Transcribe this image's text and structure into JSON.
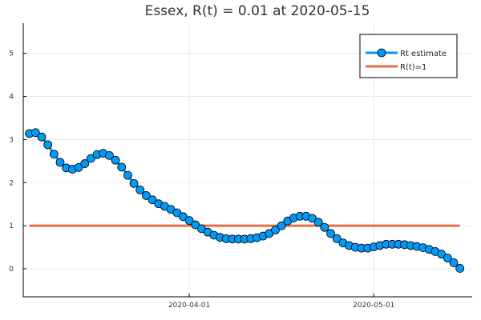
{
  "chart_data": {
    "type": "line",
    "title": "Essex, R(t) = 0.01 at 2020-05-15",
    "xlabel": "",
    "ylabel": "",
    "xlim": [
      "2020-03-05",
      "2020-05-17"
    ],
    "ylim": [
      -0.65,
      5.7
    ],
    "grid": true,
    "legend_position": "top-right",
    "x_ticks": [
      "2020-04-01",
      "2020-05-01"
    ],
    "y_ticks": [
      0,
      1,
      2,
      3,
      4,
      5
    ],
    "series": [
      {
        "name": "Rt estimate",
        "color": "#009af9",
        "marker": "circle",
        "x": [
          "2020-03-06",
          "2020-03-07",
          "2020-03-08",
          "2020-03-09",
          "2020-03-10",
          "2020-03-11",
          "2020-03-12",
          "2020-03-13",
          "2020-03-14",
          "2020-03-15",
          "2020-03-16",
          "2020-03-17",
          "2020-03-18",
          "2020-03-19",
          "2020-03-20",
          "2020-03-21",
          "2020-03-22",
          "2020-03-23",
          "2020-03-24",
          "2020-03-25",
          "2020-03-26",
          "2020-03-27",
          "2020-03-28",
          "2020-03-29",
          "2020-03-30",
          "2020-03-31",
          "2020-04-01",
          "2020-04-02",
          "2020-04-03",
          "2020-04-04",
          "2020-04-05",
          "2020-04-06",
          "2020-04-07",
          "2020-04-08",
          "2020-04-09",
          "2020-04-10",
          "2020-04-11",
          "2020-04-12",
          "2020-04-13",
          "2020-04-14",
          "2020-04-15",
          "2020-04-16",
          "2020-04-17",
          "2020-04-18",
          "2020-04-19",
          "2020-04-20",
          "2020-04-21",
          "2020-04-22",
          "2020-04-23",
          "2020-04-24",
          "2020-04-25",
          "2020-04-26",
          "2020-04-27",
          "2020-04-28",
          "2020-04-29",
          "2020-04-30",
          "2020-05-01",
          "2020-05-02",
          "2020-05-03",
          "2020-05-04",
          "2020-05-05",
          "2020-05-06",
          "2020-05-07",
          "2020-05-08",
          "2020-05-09",
          "2020-05-10",
          "2020-05-11",
          "2020-05-12",
          "2020-05-13",
          "2020-05-14",
          "2020-05-15"
        ],
        "values": [
          3.14,
          3.16,
          3.06,
          2.88,
          2.66,
          2.47,
          2.34,
          2.31,
          2.35,
          2.44,
          2.56,
          2.65,
          2.68,
          2.63,
          2.52,
          2.36,
          2.17,
          1.98,
          1.83,
          1.7,
          1.6,
          1.51,
          1.45,
          1.38,
          1.3,
          1.21,
          1.12,
          1.02,
          0.93,
          0.85,
          0.78,
          0.73,
          0.7,
          0.69,
          0.69,
          0.69,
          0.7,
          0.72,
          0.76,
          0.82,
          0.9,
          1.0,
          1.11,
          1.18,
          1.22,
          1.22,
          1.17,
          1.08,
          0.96,
          0.82,
          0.7,
          0.6,
          0.54,
          0.5,
          0.48,
          0.48,
          0.51,
          0.54,
          0.57,
          0.57,
          0.57,
          0.56,
          0.54,
          0.52,
          0.49,
          0.45,
          0.4,
          0.34,
          0.25,
          0.14,
          0.01
        ]
      },
      {
        "name": "R(t)=1",
        "color": "#e26f46",
        "x": [
          "2020-03-06",
          "2020-05-15"
        ],
        "values": [
          1,
          1
        ]
      }
    ]
  }
}
